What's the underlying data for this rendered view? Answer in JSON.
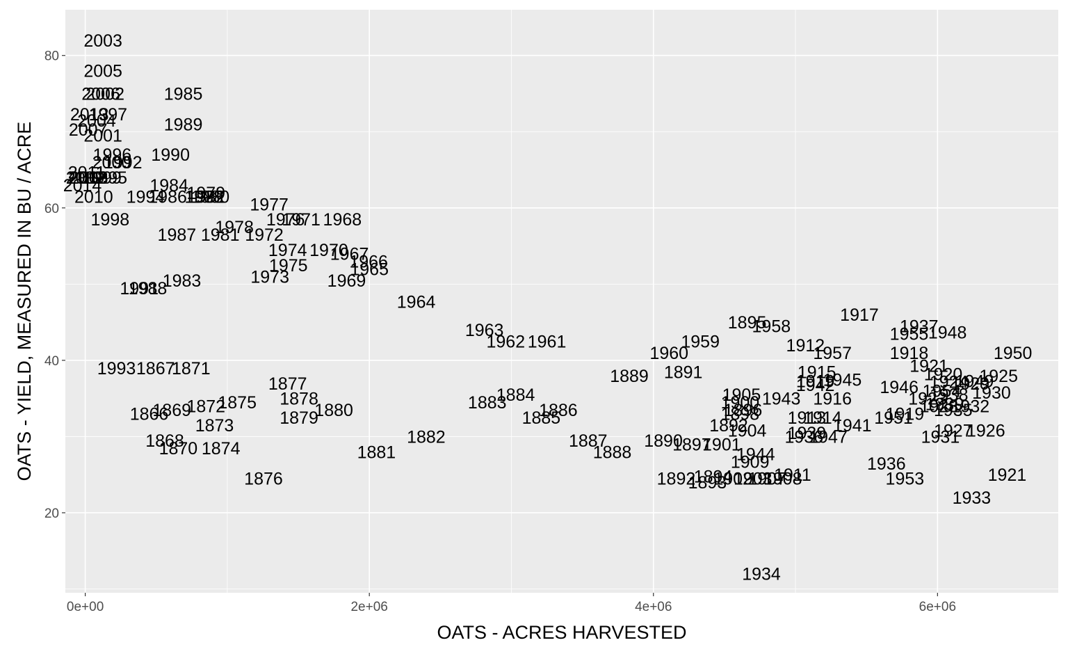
{
  "chart_data": {
    "type": "scatter",
    "marker": "text",
    "xlabel": "OATS - ACRES HARVESTED",
    "ylabel": "OATS - YIELD, MEASURED IN BU / ACRE",
    "xlim": [
      -140000,
      6850000
    ],
    "ylim": [
      9.5,
      86
    ],
    "x_ticks": [
      0,
      2000000,
      4000000,
      6000000
    ],
    "x_tick_labels": [
      "0e+00",
      "2e+06",
      "4e+06",
      "6e+06"
    ],
    "y_ticks": [
      20,
      40,
      60,
      80
    ],
    "y_tick_labels": [
      "20",
      "40",
      "60",
      "80"
    ],
    "grid": true,
    "colors": {
      "panel": "#ebebeb",
      "grid": "#ffffff",
      "text": "#000000",
      "tick": "#4d4d4d"
    },
    "points": [
      {
        "label": "2003",
        "x": 125000,
        "y": 82.0
      },
      {
        "label": "2005",
        "x": 125000,
        "y": 78.0
      },
      {
        "label": "2006",
        "x": 110000,
        "y": 75.0
      },
      {
        "label": "2002",
        "x": 140000,
        "y": 75.0
      },
      {
        "label": "1985",
        "x": 690000,
        "y": 75.0
      },
      {
        "label": "2013",
        "x": 30000,
        "y": 72.3
      },
      {
        "label": "1997",
        "x": 160000,
        "y": 72.3
      },
      {
        "label": "2004",
        "x": 80000,
        "y": 71.5
      },
      {
        "label": "1989",
        "x": 690000,
        "y": 71.0
      },
      {
        "label": "2007",
        "x": 20000,
        "y": 70.3
      },
      {
        "label": "2001",
        "x": 125000,
        "y": 69.5
      },
      {
        "label": "1996",
        "x": 190000,
        "y": 67.0
      },
      {
        "label": "1990",
        "x": 600000,
        "y": 67.0
      },
      {
        "label": "2000",
        "x": 185000,
        "y": 66.0
      },
      {
        "label": "1992",
        "x": 265000,
        "y": 66.0
      },
      {
        "label": "2011",
        "x": 10000,
        "y": 64.7
      },
      {
        "label": "2009",
        "x": 0,
        "y": 64.0
      },
      {
        "label": "2012",
        "x": 15000,
        "y": 64.0
      },
      {
        "label": "2008",
        "x": 25000,
        "y": 64.0
      },
      {
        "label": "1999",
        "x": 120000,
        "y": 64.0
      },
      {
        "label": "1995",
        "x": 160000,
        "y": 64.0
      },
      {
        "label": "2014",
        "x": -20000,
        "y": 63.0
      },
      {
        "label": "1984",
        "x": 590000,
        "y": 63.0
      },
      {
        "label": "1979",
        "x": 850000,
        "y": 62.0
      },
      {
        "label": "1982",
        "x": 850000,
        "y": 61.5
      },
      {
        "label": "2010",
        "x": 60000,
        "y": 61.5
      },
      {
        "label": "1994",
        "x": 425000,
        "y": 61.5
      },
      {
        "label": "1986",
        "x": 580000,
        "y": 61.5
      },
      {
        "label": "1988",
        "x": 835000,
        "y": 61.5
      },
      {
        "label": "1980",
        "x": 880000,
        "y": 61.5
      },
      {
        "label": "1977",
        "x": 1295000,
        "y": 60.5
      },
      {
        "label": "1998",
        "x": 175000,
        "y": 58.5
      },
      {
        "label": "1976",
        "x": 1410000,
        "y": 58.5
      },
      {
        "label": "1971",
        "x": 1520000,
        "y": 58.5
      },
      {
        "label": "1968",
        "x": 1810000,
        "y": 58.5
      },
      {
        "label": "1978",
        "x": 1050000,
        "y": 57.5
      },
      {
        "label": "1987",
        "x": 645000,
        "y": 56.5
      },
      {
        "label": "1981",
        "x": 950000,
        "y": 56.5
      },
      {
        "label": "1972",
        "x": 1260000,
        "y": 56.5
      },
      {
        "label": "1974",
        "x": 1425000,
        "y": 54.5
      },
      {
        "label": "1970",
        "x": 1715000,
        "y": 54.5
      },
      {
        "label": "1967",
        "x": 1860000,
        "y": 54.0
      },
      {
        "label": "1966",
        "x": 1995000,
        "y": 53.0
      },
      {
        "label": "1975",
        "x": 1430000,
        "y": 52.5
      },
      {
        "label": "1965",
        "x": 2000000,
        "y": 52.0
      },
      {
        "label": "1973",
        "x": 1300000,
        "y": 51.0
      },
      {
        "label": "1969",
        "x": 1840000,
        "y": 50.5
      },
      {
        "label": "1983",
        "x": 680000,
        "y": 50.5
      },
      {
        "label": "1991",
        "x": 380000,
        "y": 49.5
      },
      {
        "label": "1988",
        "x": 440000,
        "y": 49.5
      },
      {
        "label": "1964",
        "x": 2330000,
        "y": 47.7
      },
      {
        "label": "1917",
        "x": 5450000,
        "y": 46.0
      },
      {
        "label": "1895",
        "x": 4660000,
        "y": 45.0
      },
      {
        "label": "1958",
        "x": 4830000,
        "y": 44.5
      },
      {
        "label": "1937",
        "x": 5870000,
        "y": 44.5
      },
      {
        "label": "1963",
        "x": 2810000,
        "y": 44.0
      },
      {
        "label": "1955",
        "x": 5800000,
        "y": 43.5
      },
      {
        "label": "1948",
        "x": 6070000,
        "y": 43.7
      },
      {
        "label": "1962",
        "x": 2960000,
        "y": 42.5
      },
      {
        "label": "1961",
        "x": 3250000,
        "y": 42.5
      },
      {
        "label": "1959",
        "x": 4330000,
        "y": 42.5
      },
      {
        "label": "1912",
        "x": 5070000,
        "y": 42.0
      },
      {
        "label": "1960",
        "x": 4110000,
        "y": 41.0
      },
      {
        "label": "1957",
        "x": 5260000,
        "y": 41.0
      },
      {
        "label": "1918",
        "x": 5800000,
        "y": 41.0
      },
      {
        "label": "1950",
        "x": 6530000,
        "y": 41.0
      },
      {
        "label": "1921",
        "x": 5940000,
        "y": 39.3
      },
      {
        "label": "1915",
        "x": 5150000,
        "y": 38.5
      },
      {
        "label": "1891",
        "x": 4210000,
        "y": 38.5
      },
      {
        "label": "1889",
        "x": 3830000,
        "y": 38.0
      },
      {
        "label": "1920",
        "x": 6040000,
        "y": 38.2
      },
      {
        "label": "1925",
        "x": 6430000,
        "y": 38.0
      },
      {
        "label": "1945",
        "x": 5330000,
        "y": 37.5
      },
      {
        "label": "1919",
        "x": 5140000,
        "y": 37.3
      },
      {
        "label": "1942",
        "x": 5140000,
        "y": 36.8
      },
      {
        "label": "1924",
        "x": 6080000,
        "y": 37.2
      },
      {
        "label": "1929",
        "x": 6230000,
        "y": 37.0
      },
      {
        "label": "1949",
        "x": 6260000,
        "y": 37.3
      },
      {
        "label": "1946",
        "x": 5730000,
        "y": 36.5
      },
      {
        "label": "1905",
        "x": 4620000,
        "y": 35.5
      },
      {
        "label": "1943",
        "x": 4900000,
        "y": 35.0
      },
      {
        "label": "1916",
        "x": 5260000,
        "y": 35.0
      },
      {
        "label": "1930",
        "x": 6380000,
        "y": 35.8
      },
      {
        "label": "1923",
        "x": 5930000,
        "y": 35.0
      },
      {
        "label": "1954",
        "x": 6030000,
        "y": 36.0
      },
      {
        "label": "1938",
        "x": 6080000,
        "y": 35.5
      },
      {
        "label": "1900",
        "x": 4610000,
        "y": 34.5
      },
      {
        "label": "1939",
        "x": 6050000,
        "y": 34.3
      },
      {
        "label": "1896",
        "x": 4630000,
        "y": 33.5
      },
      {
        "label": "1928",
        "x": 6010000,
        "y": 34.0
      },
      {
        "label": "1932",
        "x": 6230000,
        "y": 34.0
      },
      {
        "label": "1935",
        "x": 6110000,
        "y": 33.5
      },
      {
        "label": "1898",
        "x": 4610000,
        "y": 33.0
      },
      {
        "label": "1913",
        "x": 5080000,
        "y": 32.5
      },
      {
        "label": "1914",
        "x": 5190000,
        "y": 32.5
      },
      {
        "label": "1919",
        "x": 5770000,
        "y": 33.0
      },
      {
        "label": "1951",
        "x": 5690000,
        "y": 32.5
      },
      {
        "label": "1892",
        "x": 4530000,
        "y": 31.5
      },
      {
        "label": "1941",
        "x": 5400000,
        "y": 31.5
      },
      {
        "label": "1904",
        "x": 4660000,
        "y": 30.8
      },
      {
        "label": "1927",
        "x": 6110000,
        "y": 30.8
      },
      {
        "label": "1926",
        "x": 6340000,
        "y": 30.8
      },
      {
        "label": "1939",
        "x": 5080000,
        "y": 30.5
      },
      {
        "label": "1931",
        "x": 6020000,
        "y": 30.0
      },
      {
        "label": "1936",
        "x": 5060000,
        "y": 30.0
      },
      {
        "label": "1947",
        "x": 5230000,
        "y": 30.0
      },
      {
        "label": "1890",
        "x": 4070000,
        "y": 29.5
      },
      {
        "label": "1897",
        "x": 4270000,
        "y": 29.0
      },
      {
        "label": "1901",
        "x": 4480000,
        "y": 29.0
      },
      {
        "label": "1944",
        "x": 4720000,
        "y": 27.7
      },
      {
        "label": "1909",
        "x": 4680000,
        "y": 26.7
      },
      {
        "label": "1936",
        "x": 5640000,
        "y": 26.5
      },
      {
        "label": "1911",
        "x": 4980000,
        "y": 25.0
      },
      {
        "label": "1921",
        "x": 6490000,
        "y": 25.0
      },
      {
        "label": "1892",
        "x": 4160000,
        "y": 24.5
      },
      {
        "label": "1894",
        "x": 4420000,
        "y": 24.8
      },
      {
        "label": "1902",
        "x": 4560000,
        "y": 24.5
      },
      {
        "label": "1903",
        "x": 4700000,
        "y": 24.5
      },
      {
        "label": "1907",
        "x": 4800000,
        "y": 24.5
      },
      {
        "label": "1908",
        "x": 4910000,
        "y": 24.5
      },
      {
        "label": "1893",
        "x": 4380000,
        "y": 24.0
      },
      {
        "label": "1953",
        "x": 5770000,
        "y": 24.5
      },
      {
        "label": "1933",
        "x": 6240000,
        "y": 22.0
      },
      {
        "label": "1934",
        "x": 4760000,
        "y": 12.0
      },
      {
        "label": "1993",
        "x": 220000,
        "y": 39.0
      },
      {
        "label": "1867",
        "x": 495000,
        "y": 39.0
      },
      {
        "label": "1871",
        "x": 745000,
        "y": 39.0
      },
      {
        "label": "1877",
        "x": 1425000,
        "y": 37.0
      },
      {
        "label": "1884",
        "x": 3030000,
        "y": 35.5
      },
      {
        "label": "1878",
        "x": 1505000,
        "y": 35.0
      },
      {
        "label": "1883",
        "x": 2830000,
        "y": 34.5
      },
      {
        "label": "1875",
        "x": 1070000,
        "y": 34.5
      },
      {
        "label": "1872",
        "x": 850000,
        "y": 34.0
      },
      {
        "label": "1869",
        "x": 610000,
        "y": 33.5
      },
      {
        "label": "1866",
        "x": 450000,
        "y": 33.0
      },
      {
        "label": "1886",
        "x": 3330000,
        "y": 33.5
      },
      {
        "label": "1880",
        "x": 1750000,
        "y": 33.5
      },
      {
        "label": "1885",
        "x": 3210000,
        "y": 32.5
      },
      {
        "label": "1879",
        "x": 1505000,
        "y": 32.5
      },
      {
        "label": "1873",
        "x": 910000,
        "y": 31.5
      },
      {
        "label": "1882",
        "x": 2400000,
        "y": 30.0
      },
      {
        "label": "1868",
        "x": 560000,
        "y": 29.5
      },
      {
        "label": "1887",
        "x": 3540000,
        "y": 29.5
      },
      {
        "label": "1870",
        "x": 655000,
        "y": 28.5
      },
      {
        "label": "1874",
        "x": 955000,
        "y": 28.5
      },
      {
        "label": "1881",
        "x": 2050000,
        "y": 28.0
      },
      {
        "label": "1888",
        "x": 3710000,
        "y": 28.0
      },
      {
        "label": "1876",
        "x": 1255000,
        "y": 24.5
      }
    ]
  }
}
